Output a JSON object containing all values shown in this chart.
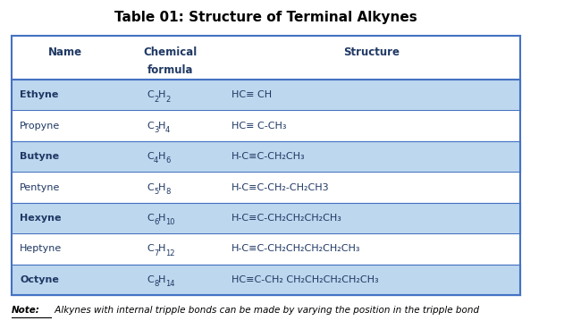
{
  "title": "Table 01: Structure of Terminal Alkynes",
  "title_fontsize": 11,
  "title_fontweight": "bold",
  "border_color": "#4472C4",
  "rows": [
    {
      "name": "Ethyne",
      "formula_c": "C",
      "formula_csub": "2",
      "formula_h": "H",
      "formula_hsub": "2",
      "structure": "HC≡ CH",
      "bold": true,
      "bg": "#BDD7EE"
    },
    {
      "name": "Propyne",
      "formula_c": "C",
      "formula_csub": "3",
      "formula_h": "H",
      "formula_hsub": "4",
      "structure": "HC≡ C-CH₃",
      "bold": false,
      "bg": "#FFFFFF"
    },
    {
      "name": "Butyne",
      "formula_c": "C",
      "formula_csub": "4",
      "formula_h": "H",
      "formula_hsub": "6",
      "structure": "H-C≡C-CH₂CH₃",
      "bold": true,
      "bg": "#BDD7EE"
    },
    {
      "name": "Pentyne",
      "formula_c": "C",
      "formula_csub": "5",
      "formula_h": "H",
      "formula_hsub": "8",
      "structure": "H-C≡C-CH₂-CH₂CH3",
      "bold": false,
      "bg": "#FFFFFF"
    },
    {
      "name": "Hexyne",
      "formula_c": "C",
      "formula_csub": "6",
      "formula_h": "H",
      "formula_hsub": "10",
      "structure": "H-C≡C-CH₂CH₂CH₂CH₃",
      "bold": true,
      "bg": "#BDD7EE"
    },
    {
      "name": "Heptyne",
      "formula_c": "C",
      "formula_csub": "7",
      "formula_h": "H",
      "formula_hsub": "12",
      "structure": "H-C≡C-CH₂CH₂CH₂CH₂CH₃",
      "bold": false,
      "bg": "#FFFFFF"
    },
    {
      "name": "Octyne",
      "formula_c": "C",
      "formula_csub": "8",
      "formula_h": "H",
      "formula_hsub": "14",
      "structure": "HC≡C-CH₂ CH₂CH₂CH₂CH₂CH₃",
      "bold": true,
      "bg": "#BDD7EE"
    }
  ],
  "note_bold": "Note:",
  "note_text": " Alkynes with internal tripple bonds can be made by varying the position in the tripple bond",
  "text_color": "#1F3864"
}
